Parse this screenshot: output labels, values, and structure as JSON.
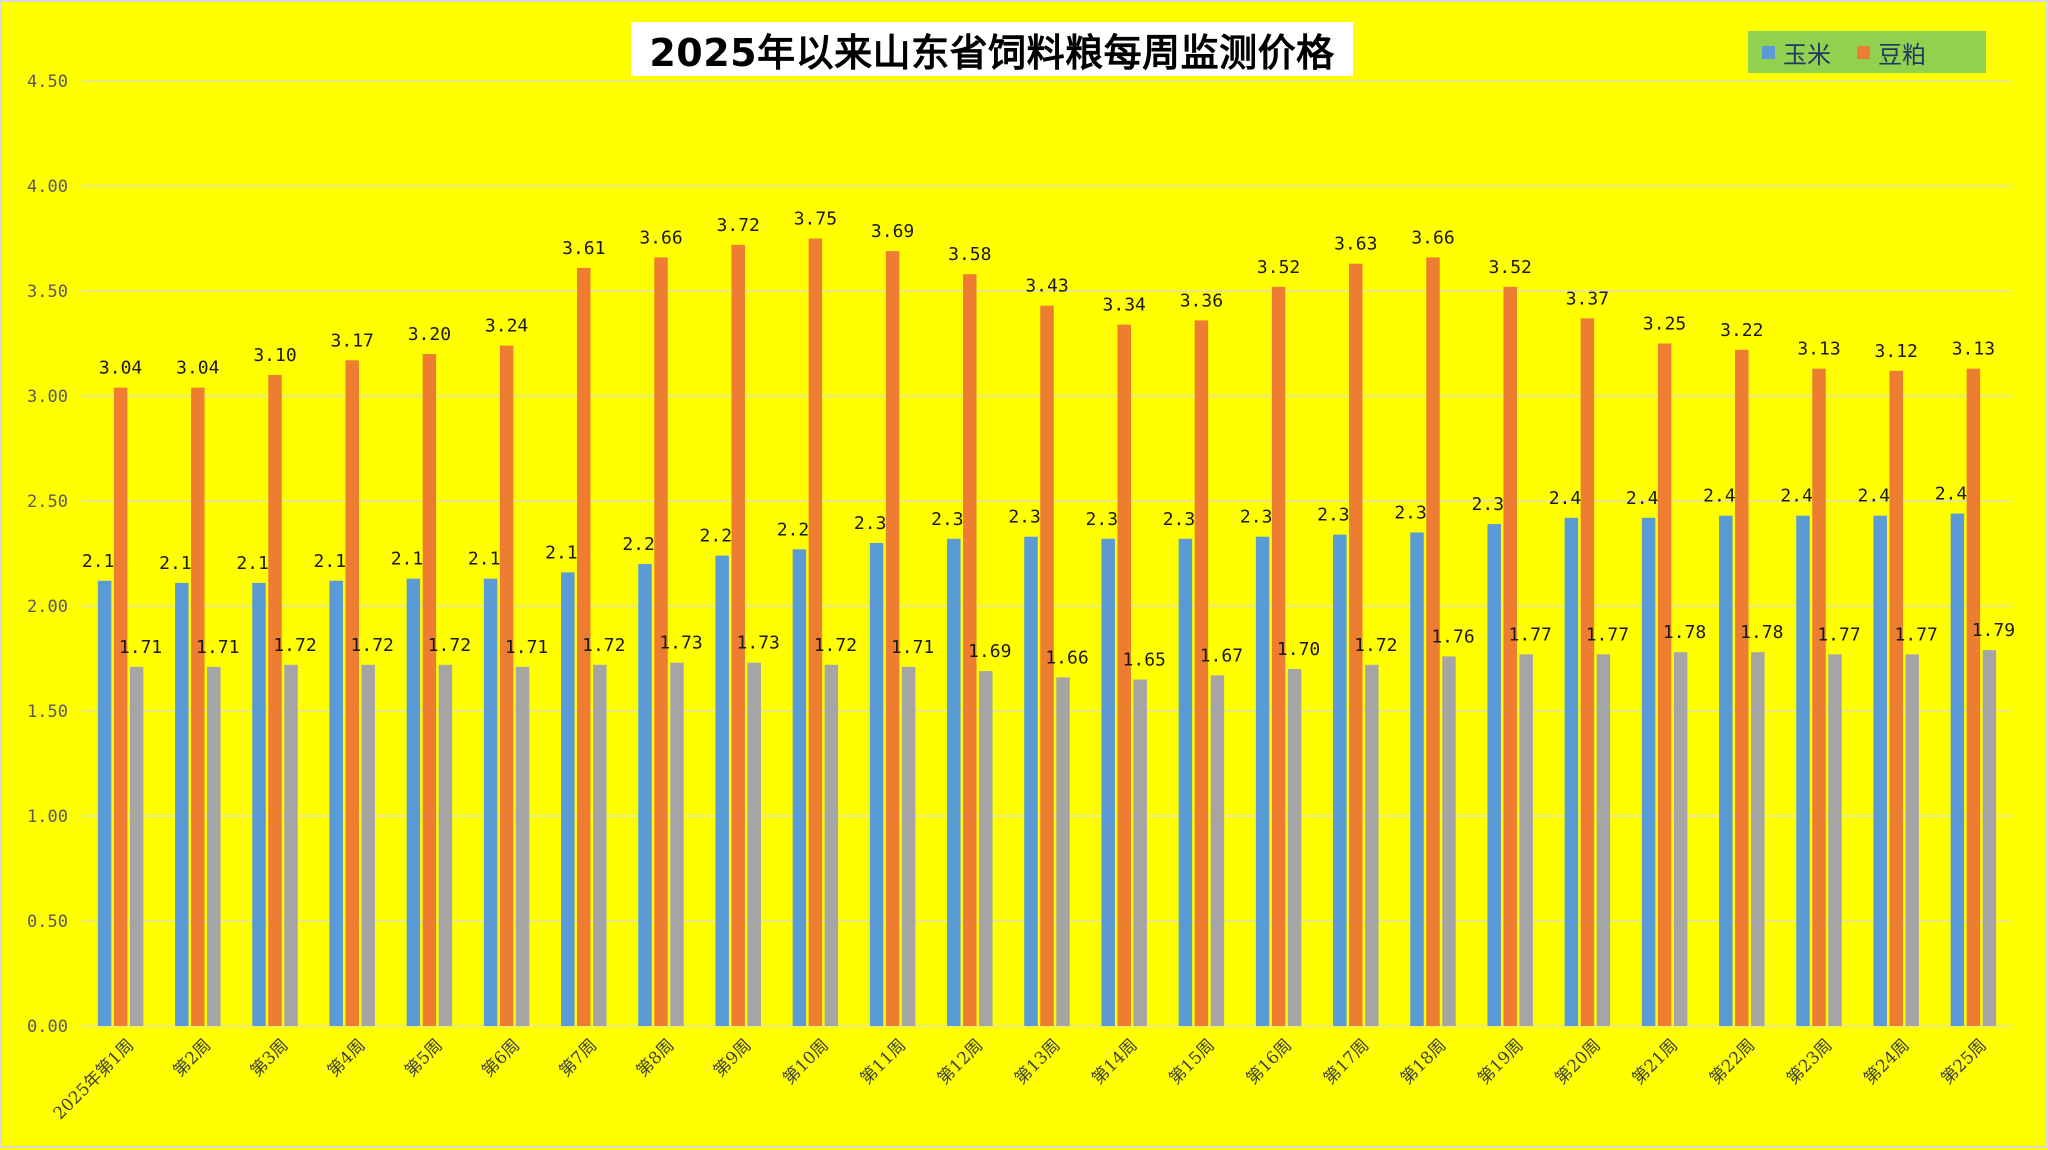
{
  "chart_data": {
    "type": "bar",
    "title": "2025年以来山东省饲料粮每周监测价格",
    "ylim": [
      0,
      4.5
    ],
    "yticks": [
      "0.00",
      "0.50",
      "1.00",
      "1.50",
      "2.00",
      "2.50",
      "3.00",
      "3.50",
      "4.00",
      "4.50"
    ],
    "grid": true,
    "legend_position": "top-right",
    "categories": [
      "2025年第1周",
      "第2周",
      "第3周",
      "第4周",
      "第5周",
      "第6周",
      "第7周",
      "第8周",
      "第9周",
      "第10周",
      "第11周",
      "第12周",
      "第13周",
      "第14周",
      "第15周",
      "第16周",
      "第17周",
      "第18周",
      "第19周",
      "第20周",
      "第21周",
      "第22周",
      "第23周",
      "第24周",
      "第25周"
    ],
    "series": [
      {
        "name": "玉米",
        "color": "#5b9bd5",
        "values": [
          2.12,
          2.11,
          2.11,
          2.12,
          2.13,
          2.13,
          2.16,
          2.2,
          2.24,
          2.27,
          2.3,
          2.32,
          2.33,
          2.32,
          2.32,
          2.33,
          2.34,
          2.35,
          2.39,
          2.42,
          2.42,
          2.43,
          2.43,
          2.43,
          2.44
        ],
        "labels": [
          "2.12",
          "2.11",
          "2.11",
          "2.12",
          "2.13",
          "2.13",
          "2.16",
          "2.20",
          "2.24",
          "2.27",
          "2.30",
          "2.32",
          "2.33",
          "2.32",
          "2.32",
          "2.33",
          "2.34",
          "2.35",
          "2.39",
          "2.42",
          "2.42",
          "2.43",
          "2.43",
          "2.43",
          "2.44"
        ]
      },
      {
        "name": "豆粕",
        "color": "#ed7d31",
        "values": [
          3.04,
          3.04,
          3.1,
          3.17,
          3.2,
          3.24,
          3.61,
          3.66,
          3.72,
          3.75,
          3.69,
          3.58,
          3.43,
          3.34,
          3.36,
          3.52,
          3.63,
          3.66,
          3.52,
          3.37,
          3.25,
          3.22,
          3.13,
          3.12,
          3.13
        ],
        "labels": [
          "3.04",
          "3.04",
          "3.10",
          "3.17",
          "3.20",
          "3.24",
          "3.61",
          "3.66",
          "3.72",
          "3.75",
          "3.69",
          "3.58",
          "3.43",
          "3.34",
          "3.36",
          "3.52",
          "3.63",
          "3.66",
          "3.52",
          "3.37",
          "3.25",
          "3.22",
          "3.13",
          "3.12",
          "3.13"
        ]
      },
      {
        "color": "#a5a5a5",
        "values": [
          1.71,
          1.71,
          1.72,
          1.72,
          1.72,
          1.71,
          1.72,
          1.73,
          1.73,
          1.72,
          1.71,
          1.69,
          1.66,
          1.65,
          1.67,
          1.7,
          1.72,
          1.76,
          1.77,
          1.77,
          1.78,
          1.78,
          1.77,
          1.77,
          1.79
        ],
        "labels": [
          "1.71",
          "1.71",
          "1.72",
          "1.72",
          "1.72",
          "1.71",
          "1.72",
          "1.73",
          "1.73",
          "1.72",
          "1.71",
          "1.69",
          "1.66",
          "1.65",
          "1.67",
          "1.70",
          "1.72",
          "1.76",
          "1.77",
          "1.77",
          "1.78",
          "1.78",
          "1.77",
          "1.77",
          "1.79"
        ]
      }
    ]
  },
  "colors": {
    "background": "#ffff00",
    "legend_background": "#92d050",
    "title_background": "#ffffff",
    "gridline": "#d9d9d9"
  }
}
